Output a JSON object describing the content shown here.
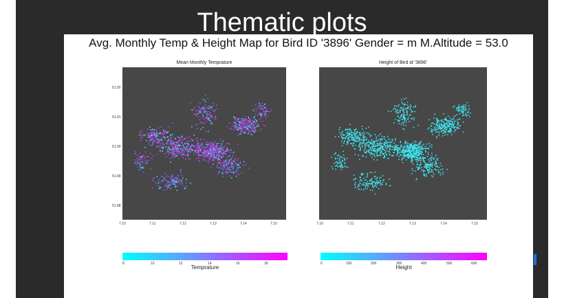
{
  "slide": {
    "title": "Thematic plots",
    "subtitle": "Avg. Monthly Temp & Height Map for Bird ID '3896' Gender = m  M.Altitude = 53.0"
  },
  "left_panel": {
    "title": "Mean Monthly Temprature",
    "x_ticks": [
      "7.10",
      "7.11",
      "7.12",
      "7.13",
      "7.14",
      "7.15"
    ],
    "y_ticks": [
      "51.92",
      "51.91",
      "51.90",
      "51.89",
      "51.88"
    ],
    "colorbar": {
      "label": "Temprature",
      "ticks": [
        "8",
        "10",
        "12",
        "14",
        "16",
        "18"
      ],
      "color_low": "#00ffff",
      "color_high": "#ff00ff"
    }
  },
  "right_panel": {
    "title": "Height of Bird id '3896'",
    "x_ticks": [
      "7.10",
      "7.11",
      "7.12",
      "7.13",
      "7.14",
      "7.15"
    ],
    "y_ticks": [],
    "colorbar": {
      "label": "Height",
      "ticks": [
        "0",
        "100",
        "200",
        "300",
        "400",
        "500",
        "600"
      ],
      "color_low": "#00ffff",
      "color_high": "#ff00ff"
    }
  },
  "colors": {
    "plot_bg": "#474747",
    "slide_bg": "#2a2a2a",
    "point_cyan": "#3de6f0",
    "point_purple": "#8a5cf0",
    "point_magenta": "#c040e8"
  },
  "chart_data": [
    {
      "type": "scatter",
      "title": "Mean Monthly Temprature",
      "x_ticks": [
        "7.10",
        "7.11",
        "7.12",
        "7.13",
        "7.14",
        "7.15"
      ],
      "y_ticks": [
        "51.92",
        "51.91",
        "51.90",
        "51.89",
        "51.88"
      ],
      "xlim": [
        7.1,
        7.155
      ],
      "ylim": [
        51.875,
        51.925
      ],
      "grid": false,
      "colorbar": {
        "label": "Temprature",
        "range": [
          8,
          19
        ]
      }
    },
    {
      "type": "scatter",
      "title": "Height of Bird id '3896'",
      "x_ticks": [
        "7.10",
        "7.11",
        "7.12",
        "7.13",
        "7.14",
        "7.15"
      ],
      "xlim": [
        7.1,
        7.155
      ],
      "ylim": [
        51.875,
        51.925
      ],
      "grid": false,
      "colorbar": {
        "label": "Height",
        "range": [
          0,
          650
        ]
      }
    }
  ]
}
